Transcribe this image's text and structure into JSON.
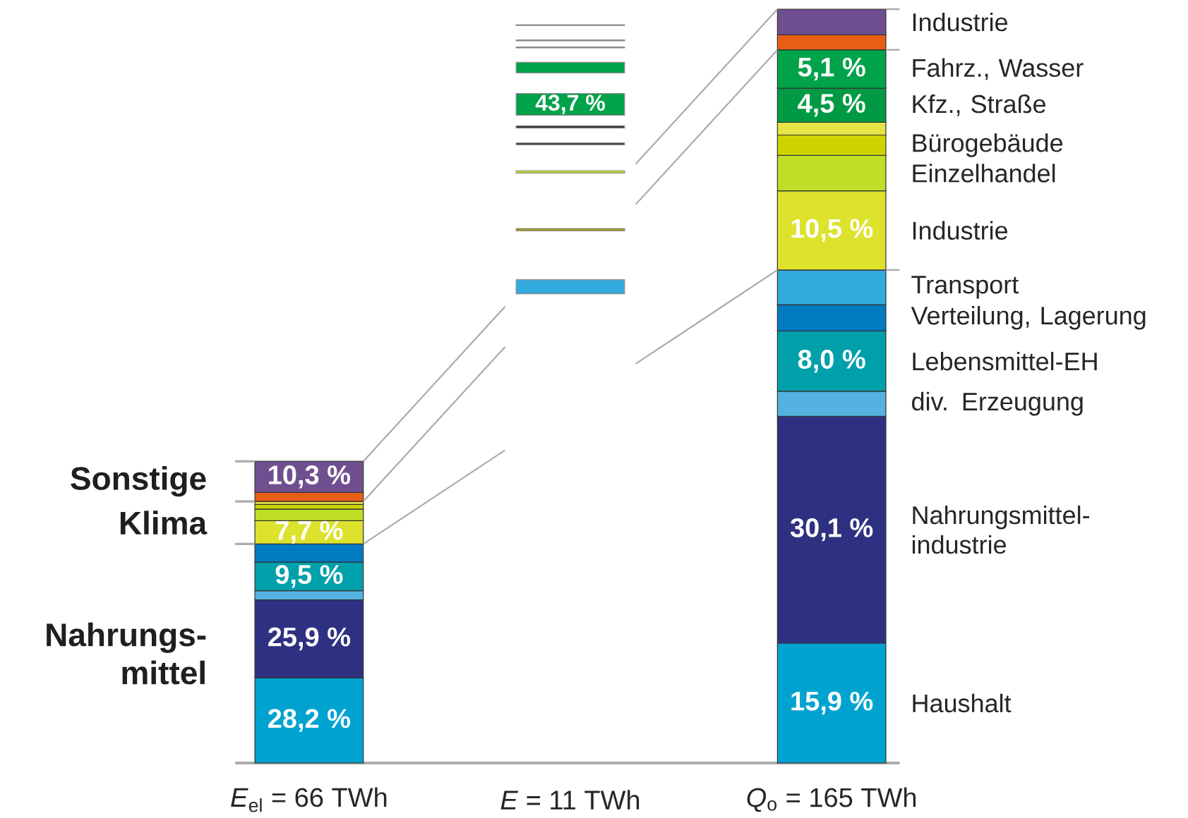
{
  "chart_data": [
    {
      "type": "bar",
      "stacked": true,
      "categories": [
        "*E*$_{el}$ = 66 TWh"
      ],
      "annotations": [
        "Sonstige",
        "Klima",
        "Nahrungs-mittel"
      ],
      "series": [
        {
          "color": "#00a3d0",
          "values": [
            28.2
          ],
          "value_labels": [
            "28,2 %"
          ]
        },
        {
          "color": "#2e3181",
          "values": [
            25.9
          ],
          "value_labels": [
            "25,9 %"
          ]
        },
        {
          "color": "#55b2e0",
          "values": [
            3.0
          ]
        },
        {
          "color": "#00a0ab",
          "values": [
            9.5
          ],
          "value_labels": [
            "9,5 %"
          ]
        },
        {
          "color": "#007ac0",
          "values": [
            6.0
          ]
        },
        {
          "color": "#dde22c",
          "values": [
            7.7
          ],
          "value_labels": [
            "7,7 %"
          ]
        },
        {
          "color": "#bedf26",
          "values": [
            3.9
          ]
        },
        {
          "color": "#cdd400",
          "values": [
            1.5
          ]
        },
        {
          "color": "#e6e447",
          "values": [
            1.0
          ]
        },
        {
          "color": "#e85e14",
          "values": [
            3.0
          ]
        },
        {
          "color": "#6f4f90",
          "values": [
            10.3
          ],
          "value_labels": [
            "10,3 %"
          ]
        }
      ]
    },
    {
      "type": "other",
      "annotations": [
        "43,7 %",
        "*E* = 11 TWh"
      ]
    },
    {
      "type": "bar",
      "stacked": true,
      "categories": [
        "*Q*$_{o}$ = 165 TWh"
      ],
      "series": [
        {
          "name": "Haushalt",
          "color": "#00a3d0",
          "values": [
            15.9
          ],
          "value_labels": [
            "15,9 %"
          ]
        },
        {
          "name": "Nahrungsmittel-industrie",
          "color": "#2e3181",
          "values": [
            30.1
          ],
          "value_labels": [
            "30,1 %"
          ]
        },
        {
          "name": "div. Erzeugung",
          "color": "#55b2e0",
          "values": [
            3.3
          ]
        },
        {
          "name": "Lebensmittel-EH",
          "color": "#00a0ab",
          "values": [
            8.0
          ],
          "value_labels": [
            "8,0 %"
          ]
        },
        {
          "name": "Verteilung, Lagerung",
          "color": "#007ac0",
          "values": [
            3.5
          ]
        },
        {
          "name": "Transport",
          "color": "#33aadd",
          "values": [
            4.6
          ]
        },
        {
          "name": "Industrie",
          "color": "#dde22c",
          "values": [
            10.5
          ],
          "value_labels": [
            "10,5 %"
          ]
        },
        {
          "name": "Einzelhandel",
          "color": "#bedf26",
          "values": [
            4.7
          ]
        },
        {
          "name": "Bürogebäude",
          "color": "#cdd400",
          "values": [
            2.7
          ]
        },
        {
          "color": "#e6e447",
          "values": [
            1.7
          ]
        },
        {
          "name": "Kfz., Straße",
          "color": "#009a44",
          "values": [
            4.5
          ],
          "value_labels": [
            "4,5 %"
          ]
        },
        {
          "name": "Fahrz., Wasser",
          "color": "#00a24a",
          "values": [
            5.1
          ],
          "value_labels": [
            "5,1 %"
          ]
        },
        {
          "color": "#e85e14",
          "values": [
            2.0
          ]
        },
        {
          "name": "Industrie",
          "color": "#6f4f90",
          "values": [
            3.4
          ]
        }
      ]
    }
  ]
}
